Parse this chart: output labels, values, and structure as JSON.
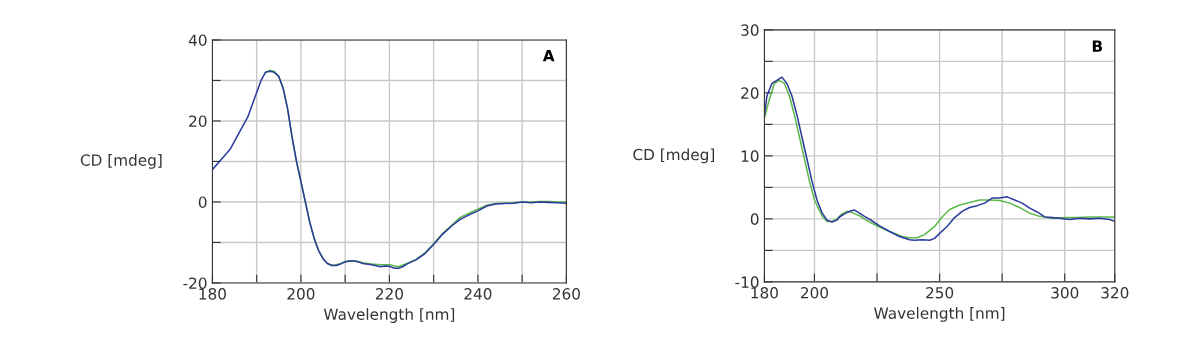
{
  "chart_data": [
    {
      "type": "line",
      "xlabel": "Wavelength [nm]",
      "ylabel": "CD [mdeg]",
      "annotations": [
        "A"
      ],
      "grid": true,
      "marker": "none",
      "line_style": "solid",
      "xlim": [
        180,
        260
      ],
      "xticks": [
        180,
        {
          "value": 190,
          "label": null
        },
        200,
        {
          "value": 210,
          "label": null
        },
        220,
        {
          "value": 230,
          "label": null
        },
        240,
        {
          "value": 250,
          "label": null
        },
        260
      ],
      "ylim": [
        -20,
        40
      ],
      "yticks": [
        -20,
        {
          "value": -10,
          "label": null
        },
        0,
        {
          "value": 10,
          "label": null
        },
        20,
        {
          "value": 30,
          "label": null
        },
        40
      ],
      "series": [
        {
          "color": "#5cb84a",
          "x": [
            192,
            193,
            194,
            195,
            196,
            197,
            198,
            199,
            200,
            201,
            202,
            203,
            204,
            205,
            206,
            207,
            208,
            209,
            210,
            211,
            212,
            213,
            214,
            216,
            218,
            220,
            222,
            224,
            226,
            228,
            230,
            232,
            234,
            236,
            238,
            240,
            242,
            244,
            246,
            248,
            250,
            252,
            254,
            256,
            258,
            260
          ],
          "values": [
            32,
            32.5,
            32.2,
            31,
            28,
            23,
            16,
            10,
            5,
            0,
            -5,
            -9,
            -12,
            -14,
            -15.2,
            -15.6,
            -15.5,
            -15.2,
            -14.7,
            -14.5,
            -14.5,
            -14.7,
            -15,
            -15.3,
            -15.5,
            -15.5,
            -16,
            -15.2,
            -14.2,
            -12.6,
            -10.3,
            -7.8,
            -5.8,
            -3.8,
            -2.8,
            -1.8,
            -0.8,
            -0.4,
            -0.3,
            -0.2,
            0,
            0,
            0.1,
            0.1,
            0,
            0
          ]
        },
        {
          "color": "#2b3a9c",
          "x": [
            180,
            182,
            184,
            186,
            188,
            190,
            191,
            192,
            193,
            194,
            195,
            196,
            197,
            198,
            199,
            200,
            201,
            202,
            203,
            204,
            205,
            206,
            207,
            208,
            209,
            210,
            211,
            212,
            213,
            214,
            216,
            218,
            219,
            220,
            221,
            222,
            223,
            224,
            226,
            228,
            230,
            232,
            234,
            236,
            238,
            240,
            242,
            244,
            246,
            248,
            250,
            252,
            254,
            256,
            258,
            260
          ],
          "values": [
            8,
            10.5,
            13,
            17,
            21,
            27,
            30,
            32,
            32.3,
            32,
            31,
            28,
            23,
            16,
            10,
            5,
            0,
            -5,
            -9,
            -12,
            -14,
            -15.2,
            -15.7,
            -15.7,
            -15.3,
            -14.8,
            -14.6,
            -14.6,
            -14.8,
            -15.2,
            -15.5,
            -16,
            -15.8,
            -15.9,
            -16.3,
            -16.4,
            -16,
            -15.3,
            -14.3,
            -12.8,
            -10.5,
            -8,
            -6,
            -4.3,
            -3.2,
            -2.2,
            -1,
            -0.5,
            -0.4,
            -0.3,
            0,
            -0.2,
            0,
            -0.1,
            -0.2,
            -0.3
          ]
        }
      ]
    },
    {
      "type": "line",
      "xlabel": "Wavelength [nm]",
      "ylabel": "CD [mdeg]",
      "annotations": [
        "B"
      ],
      "grid": true,
      "marker": "none",
      "line_style": "solid",
      "xlim": [
        180,
        320
      ],
      "xticks": [
        180,
        200,
        {
          "value": 225,
          "label": null
        },
        250,
        {
          "value": 275,
          "label": null
        },
        300,
        320
      ],
      "ylim": [
        -10,
        30
      ],
      "yticks": [
        -10,
        {
          "value": -5,
          "label": null
        },
        0,
        {
          "value": 5,
          "label": null
        },
        10,
        {
          "value": 15,
          "label": null
        },
        20,
        {
          "value": 25,
          "label": null
        },
        30
      ],
      "series": [
        {
          "color": "#5cb84a",
          "x": [
            180,
            182,
            184,
            186,
            188,
            190,
            192,
            194,
            196,
            198,
            200,
            203,
            205,
            207,
            209,
            211,
            213,
            215,
            218,
            222,
            226,
            230,
            235,
            238,
            241,
            244,
            248,
            251,
            254,
            258,
            262,
            266,
            270,
            274,
            278,
            282,
            286,
            290,
            295,
            300,
            305,
            310,
            315,
            320
          ],
          "values": [
            16,
            19,
            21.5,
            22,
            21.5,
            19.5,
            16.5,
            13,
            9.5,
            6,
            3,
            0.5,
            -0.4,
            -0.4,
            0,
            0.8,
            1.2,
            1,
            0.5,
            -0.5,
            -1.3,
            -2,
            -2.8,
            -3,
            -3,
            -2.5,
            -1.2,
            0.3,
            1.5,
            2.2,
            2.6,
            3,
            3,
            2.9,
            2.5,
            1.8,
            0.9,
            0.4,
            0.1,
            0.2,
            0.2,
            0.3,
            0.3,
            0.3
          ]
        },
        {
          "color": "#2b3a9c",
          "x": [
            180,
            181,
            183,
            185,
            187,
            189,
            191,
            193,
            195,
            197,
            199,
            201,
            203,
            205,
            207,
            209,
            210,
            212,
            214,
            216,
            218,
            220,
            223,
            226,
            230,
            234,
            238,
            240,
            243,
            246,
            248,
            250,
            253,
            256,
            259,
            262,
            265,
            268,
            271,
            274,
            277,
            280,
            283,
            286,
            289,
            292,
            295,
            298,
            302,
            306,
            310,
            314,
            318,
            320
          ],
          "values": [
            16.4,
            19.5,
            21.5,
            22,
            22.5,
            21.5,
            19.5,
            16.5,
            13,
            9.5,
            6,
            3,
            1,
            -0.2,
            -0.5,
            -0.2,
            0.3,
            0.8,
            1.2,
            1.4,
            0.9,
            0.4,
            -0.3,
            -1.1,
            -2,
            -2.8,
            -3.3,
            -3.4,
            -3.3,
            -3.4,
            -3.1,
            -2.3,
            -1.2,
            0.2,
            1.2,
            1.8,
            2.1,
            2.5,
            3.3,
            3.3,
            3.5,
            3,
            2.5,
            1.7,
            1.1,
            0.3,
            0.2,
            0.1,
            -0.1,
            0.1,
            0,
            0.1,
            -0.1,
            -0.4
          ]
        }
      ]
    }
  ]
}
